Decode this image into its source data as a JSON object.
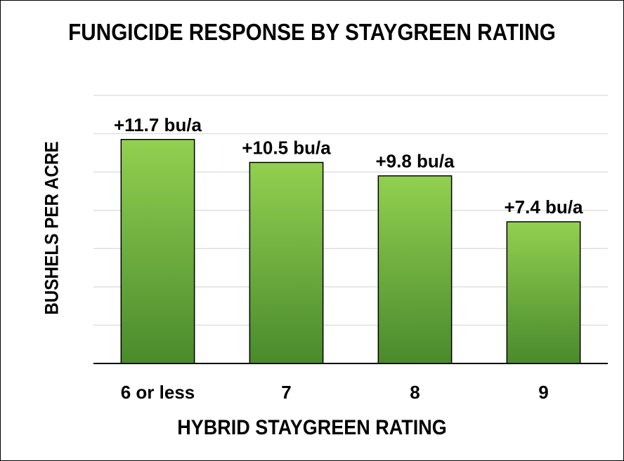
{
  "chart_data": {
    "type": "bar",
    "title": "FUNGICIDE RESPONSE BY STAYGREEN RATING",
    "xlabel": "HYBRID STAYGREEN RATING",
    "ylabel": "BUSHELS PER ACRE",
    "categories": [
      "6 or less",
      "7",
      "8",
      "9"
    ],
    "values": [
      11.7,
      10.5,
      9.8,
      7.4
    ],
    "data_labels": [
      "+11.7 bu/a",
      "+10.5 bu/a",
      "+9.8 bu/a",
      "+7.4 bu/a"
    ],
    "ylim": [
      0,
      14
    ],
    "grid": true,
    "legend": "none",
    "bar_color_top": "#92d050",
    "bar_color_bottom": "#4a8a2c"
  }
}
